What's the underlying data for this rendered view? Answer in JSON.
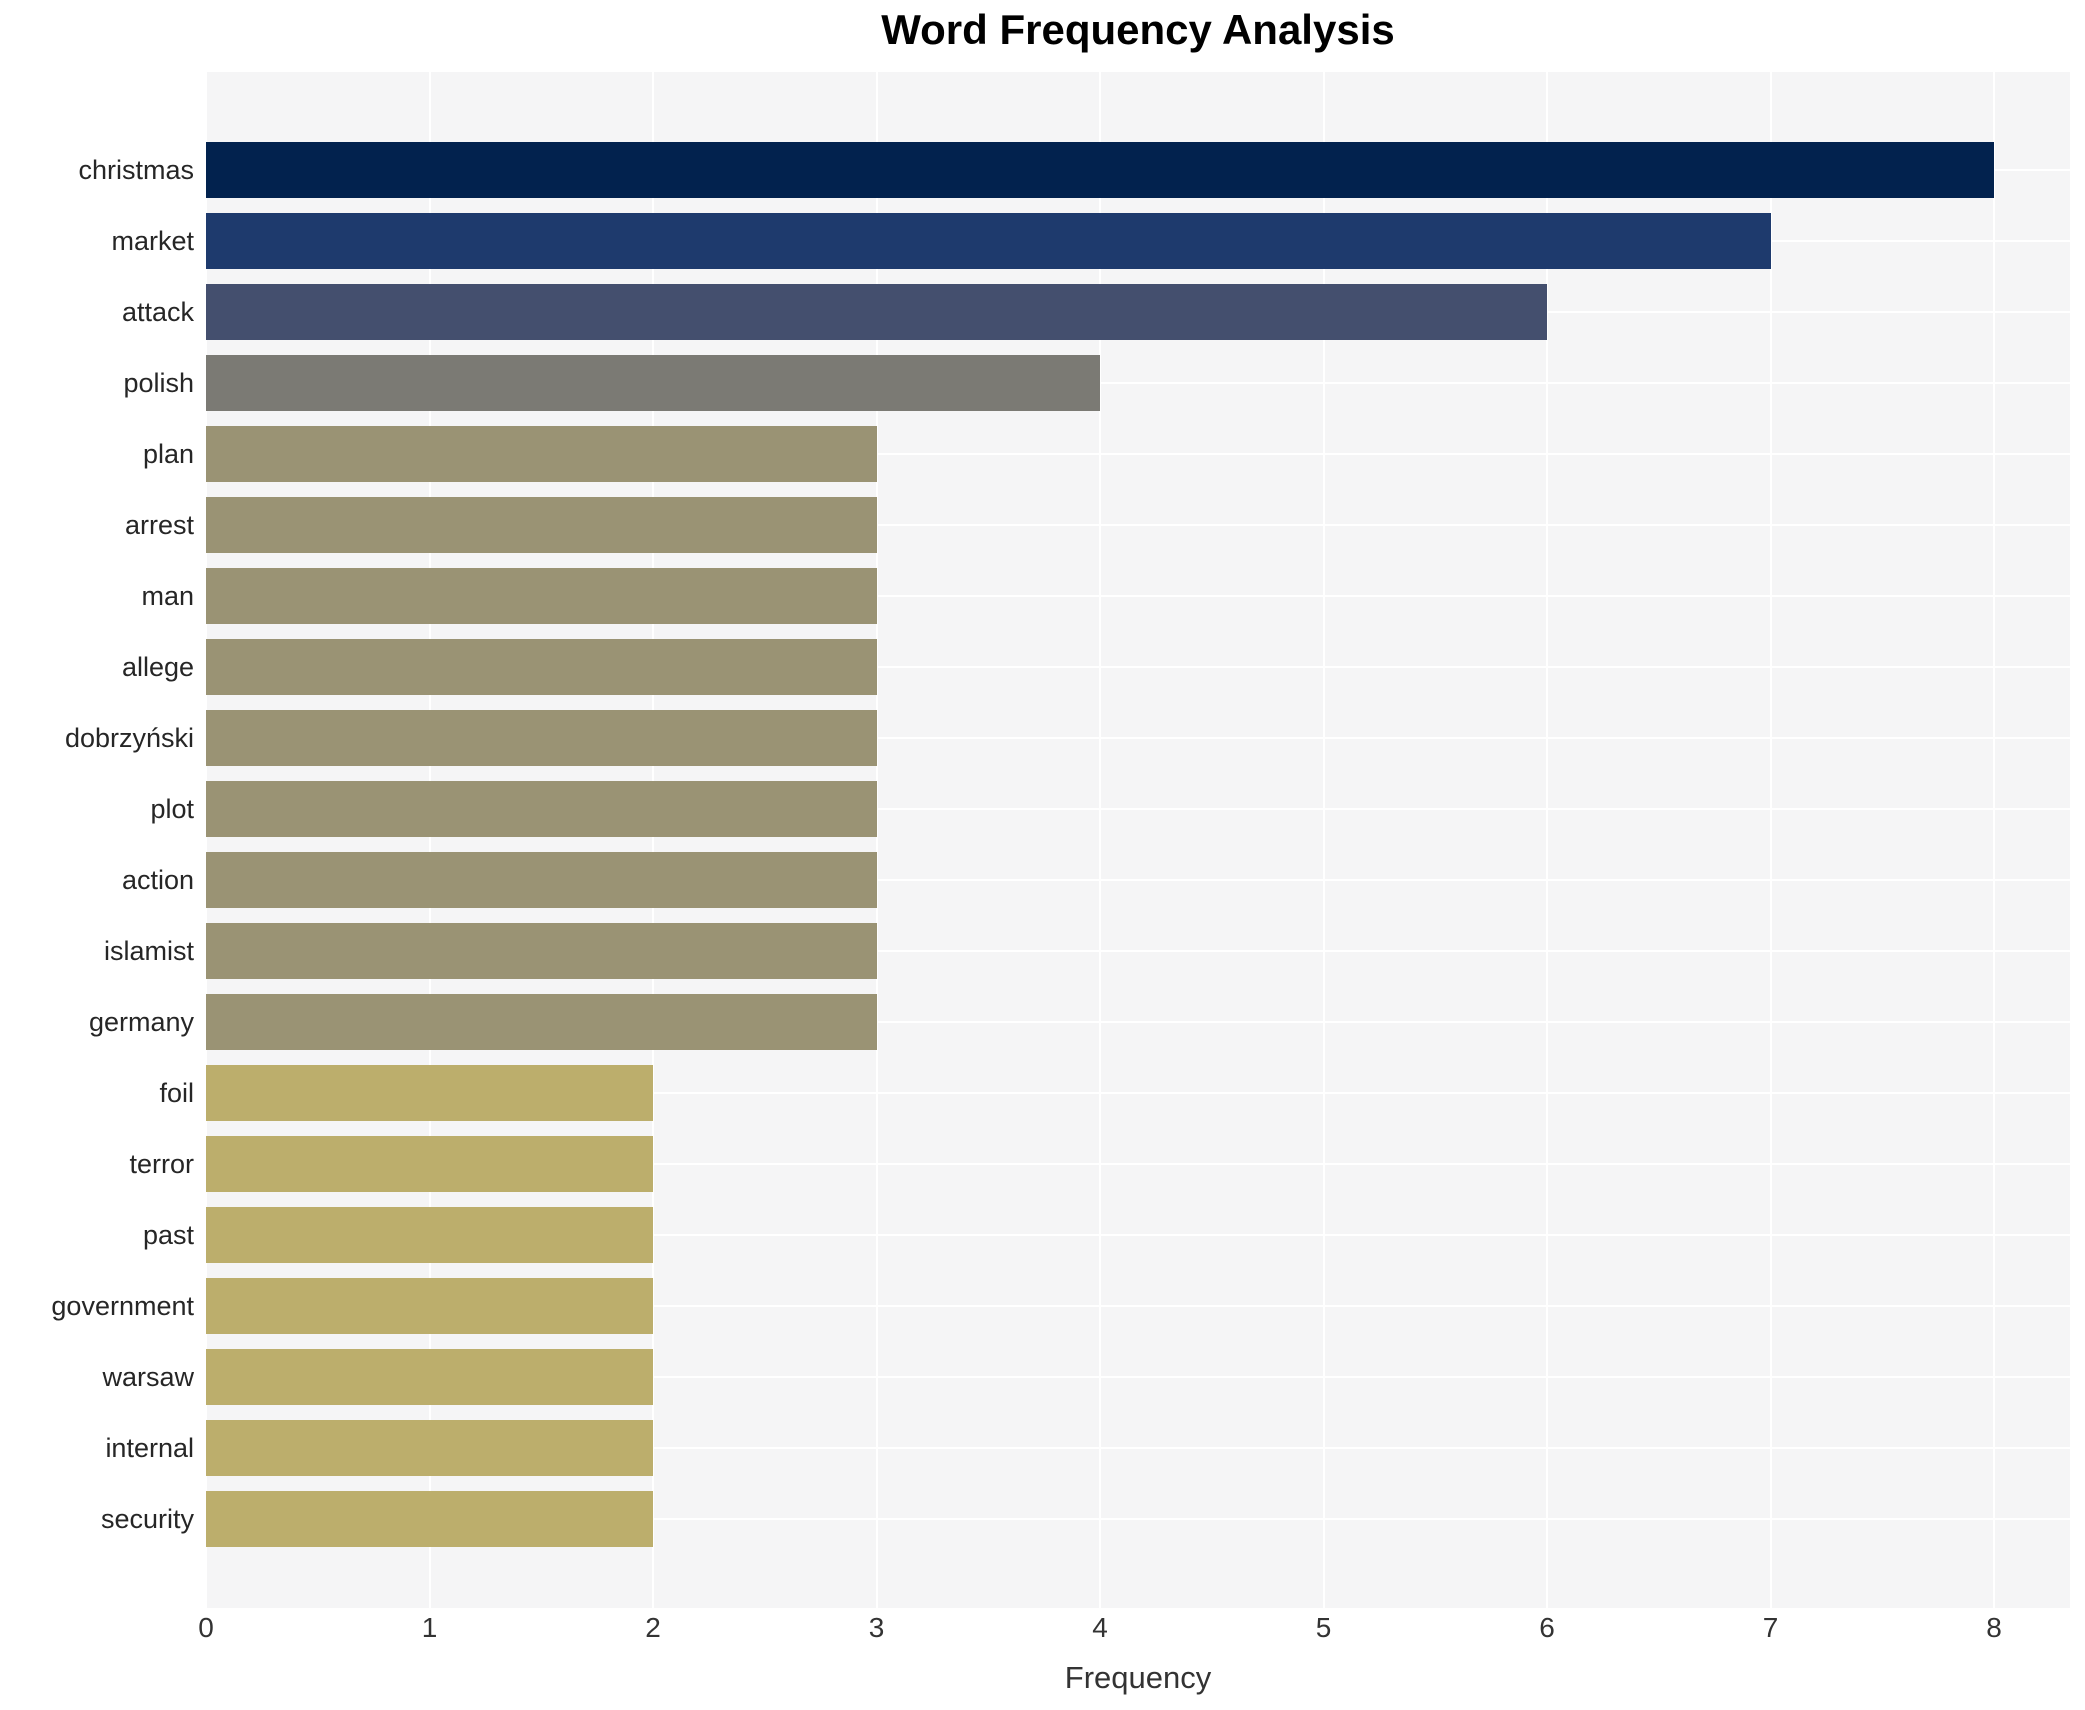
{
  "title": "Word Frequency Analysis",
  "colors": {
    "page_background": "#ffffff",
    "plot_background": "#f5f5f6",
    "gridline": "#ffffff",
    "title_text": "#000000",
    "category_label_text": "#262626",
    "tick_label_text": "#333333"
  },
  "chart_data": {
    "type": "bar",
    "orientation": "horizontal",
    "title": "Word Frequency Analysis",
    "xlabel": "Frequency",
    "ylabel": "",
    "categories": [
      "christmas",
      "market",
      "attack",
      "polish",
      "plan",
      "arrest",
      "man",
      "allege",
      "dobrzyński",
      "plot",
      "action",
      "islamist",
      "germany",
      "foil",
      "terror",
      "past",
      "government",
      "warsaw",
      "internal",
      "security"
    ],
    "values": [
      8,
      7,
      6,
      4,
      3,
      3,
      3,
      3,
      3,
      3,
      3,
      3,
      3,
      2,
      2,
      2,
      2,
      2,
      2,
      2
    ],
    "bar_colors": [
      "#02224e",
      "#1e3a6d",
      "#444f6e",
      "#7b7a74",
      "#9a9374",
      "#9a9374",
      "#9a9374",
      "#9a9374",
      "#9a9374",
      "#9a9374",
      "#9a9374",
      "#9a9374",
      "#9a9374",
      "#bcae6c",
      "#bcae6c",
      "#bcae6c",
      "#bcae6c",
      "#bcae6c",
      "#bcae6c",
      "#bcae6c"
    ],
    "xlim": [
      0,
      8.34
    ],
    "xticks": [
      0,
      1,
      2,
      3,
      4,
      5,
      6,
      7,
      8
    ],
    "grid": true,
    "legend": false
  }
}
